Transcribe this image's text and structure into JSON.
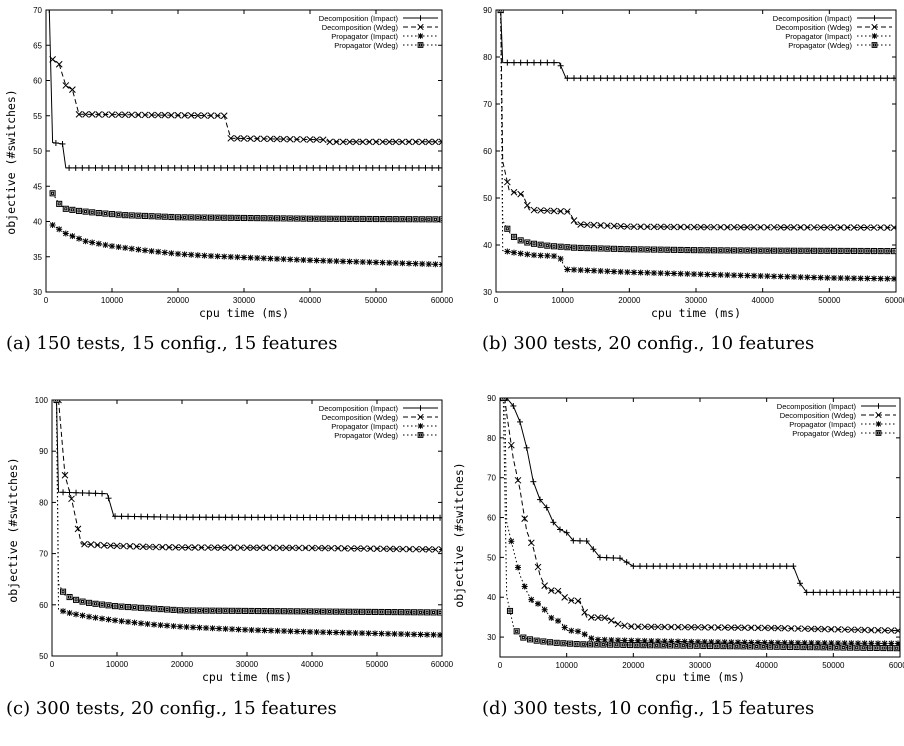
{
  "figure": {
    "title": ""
  },
  "chart_data": [
    {
      "id": "a",
      "type": "line",
      "caption": "(a) 150 tests, 15 config., 15 features",
      "xlabel": "cpu time (ms)",
      "ylabel": "objective (#switches)",
      "xlim": [
        0,
        60000
      ],
      "ylim": [
        30,
        70
      ],
      "xticks": [
        0,
        10000,
        20000,
        30000,
        40000,
        50000,
        60000
      ],
      "yticks": [
        30,
        35,
        40,
        45,
        50,
        55,
        60,
        65,
        70
      ],
      "legend_position": "top-right",
      "series": [
        {
          "name": "Decomposition (Impact)",
          "marker": "plus",
          "dash": "solid",
          "x": [
            500,
            1000,
            2500,
            3000,
            60000
          ],
          "y": [
            70,
            51.2,
            51,
            47.6,
            47.6
          ]
        },
        {
          "name": "Decomposition (Wdeg)",
          "marker": "cross",
          "dash": "dashed",
          "x": [
            1000,
            2000,
            3000,
            4000,
            5000,
            6000,
            27000,
            28000,
            42000,
            43000,
            60000
          ],
          "y": [
            63,
            62.3,
            59.3,
            58.7,
            55.2,
            55.2,
            55.0,
            51.8,
            51.6,
            51.3,
            51.3
          ]
        },
        {
          "name": "Propagator (Impact)",
          "marker": "star",
          "dash": "dotted",
          "x": [
            1000,
            3000,
            6000,
            10000,
            15000,
            20000,
            25000,
            30000,
            40000,
            50000,
            60000
          ],
          "y": [
            39.5,
            38.3,
            37.2,
            36.5,
            35.9,
            35.4,
            35.1,
            34.9,
            34.5,
            34.2,
            33.9
          ]
        },
        {
          "name": "Propagator (Wdeg)",
          "marker": "square",
          "dash": "dotted",
          "x": [
            1000,
            2000,
            3000,
            5000,
            8000,
            12000,
            20000,
            30000,
            40000,
            60000
          ],
          "y": [
            44,
            42.5,
            41.8,
            41.5,
            41.2,
            40.9,
            40.6,
            40.5,
            40.4,
            40.3
          ]
        }
      ]
    },
    {
      "id": "b",
      "type": "line",
      "caption": "(b) 300 tests, 20 config., 10 features",
      "xlabel": "cpu time (ms)",
      "ylabel": "",
      "xlim": [
        0,
        60000
      ],
      "ylim": [
        30,
        90
      ],
      "xticks": [
        0,
        10000,
        20000,
        30000,
        40000,
        50000,
        60000
      ],
      "yticks": [
        30,
        40,
        50,
        60,
        70,
        80,
        90
      ],
      "legend_position": "top-right",
      "series": [
        {
          "name": "Decomposition (Impact)",
          "marker": "plus",
          "dash": "solid",
          "x": [
            700,
            1000,
            9500,
            10500,
            60000
          ],
          "y": [
            90,
            78.8,
            78.8,
            75.5,
            75.5
          ]
        },
        {
          "name": "Decomposition (Wdeg)",
          "marker": "cross",
          "dash": "dashed",
          "x": [
            700,
            1000,
            2000,
            4000,
            5000,
            6000,
            11000,
            12000,
            20000,
            30000,
            60000
          ],
          "y": [
            90,
            57.8,
            51.5,
            50.7,
            47.5,
            47.4,
            47.1,
            44.4,
            43.9,
            43.8,
            43.7
          ]
        },
        {
          "name": "Propagator (Impact)",
          "marker": "star",
          "dash": "dotted",
          "x": [
            700,
            1000,
            3000,
            6000,
            9500,
            10500,
            20000,
            30000,
            40000,
            50000,
            60000
          ],
          "y": [
            90,
            38.8,
            38.3,
            37.8,
            37.6,
            34.8,
            34.2,
            33.8,
            33.4,
            33.0,
            32.8
          ]
        },
        {
          "name": "Propagator (Wdeg)",
          "marker": "square",
          "dash": "dotted",
          "x": [
            700,
            1000,
            2000,
            3000,
            5000,
            8000,
            12000,
            20000,
            30000,
            40000,
            60000
          ],
          "y": [
            90,
            45.2,
            42.7,
            41.3,
            40.4,
            39.8,
            39.4,
            39.1,
            38.9,
            38.8,
            38.7
          ]
        }
      ]
    },
    {
      "id": "c",
      "type": "line",
      "caption": "(c) 300 tests, 20 config., 15 features",
      "xlabel": "cpu time (ms)",
      "ylabel": "objective (#switches)",
      "xlim": [
        0,
        60000
      ],
      "ylim": [
        50,
        100
      ],
      "xticks": [
        0,
        10000,
        20000,
        30000,
        40000,
        50000,
        60000
      ],
      "yticks": [
        50,
        60,
        70,
        80,
        90,
        100
      ],
      "legend_position": "top-right",
      "series": [
        {
          "name": "Decomposition (Impact)",
          "marker": "plus",
          "dash": "solid",
          "x": [
            700,
            1000,
            8500,
            9500,
            20000,
            60000
          ],
          "y": [
            100,
            82,
            81.7,
            77.3,
            77.1,
            77.0
          ]
        },
        {
          "name": "Decomposition (Wdeg)",
          "marker": "cross",
          "dash": "dashed",
          "x": [
            1000,
            2000,
            3000,
            4500,
            8000,
            15000,
            20000,
            40000,
            60000
          ],
          "y": [
            100,
            85.3,
            80.7,
            71.9,
            71.6,
            71.3,
            71.2,
            71.1,
            70.8
          ]
        },
        {
          "name": "Propagator (Impact)",
          "marker": "star",
          "dash": "dotted",
          "x": [
            700,
            1000,
            3000,
            6000,
            10000,
            15000,
            20000,
            30000,
            40000,
            50000,
            60000
          ],
          "y": [
            100,
            59,
            58.3,
            57.6,
            56.9,
            56.2,
            55.7,
            55.1,
            54.7,
            54.4,
            54.1
          ]
        },
        {
          "name": "Propagator (Wdeg)",
          "marker": "square",
          "dash": "dotted",
          "x": [
            700,
            1000,
            2000,
            4000,
            6000,
            10000,
            15000,
            20000,
            30000,
            40000,
            60000
          ],
          "y": [
            100,
            64.1,
            61.9,
            60.8,
            60.3,
            59.7,
            59.3,
            58.9,
            58.8,
            58.7,
            58.5
          ]
        }
      ]
    },
    {
      "id": "d",
      "type": "line",
      "caption": "(d) 300 tests, 10 config., 15 features",
      "xlabel": "cpu time (ms)",
      "ylabel": "objective (#switches)",
      "xlim": [
        0,
        60000
      ],
      "ylim": [
        25,
        90
      ],
      "xticks": [
        0,
        10000,
        20000,
        30000,
        40000,
        50000,
        60000
      ],
      "yticks": [
        30,
        40,
        50,
        60,
        70,
        80,
        90
      ],
      "legend_position": "top-right",
      "series": [
        {
          "name": "Decomposition (Impact)",
          "marker": "plus",
          "dash": "solid",
          "x": [
            1000,
            2000,
            3000,
            4000,
            5000,
            6000,
            7000,
            8000,
            9000,
            10000,
            11000,
            13000,
            15000,
            18000,
            20000,
            44000,
            45000,
            46000,
            60000
          ],
          "y": [
            90,
            88,
            84,
            77.5,
            69,
            64.5,
            62.5,
            58.8,
            57,
            56.2,
            54.2,
            54.1,
            50,
            49.8,
            47.8,
            47.8,
            43.5,
            41.2,
            41.2
          ]
        },
        {
          "name": "Decomposition (Wdeg)",
          "marker": "cross",
          "dash": "dashed",
          "x": [
            700,
            1000,
            2000,
            3000,
            4000,
            5000,
            6000,
            7000,
            9000,
            10000,
            12000,
            13000,
            16000,
            18000,
            20000,
            40000,
            60000
          ],
          "y": [
            90,
            86,
            74.8,
            67,
            56.6,
            52.4,
            45.5,
            41.8,
            41.5,
            39.3,
            39.0,
            35.0,
            34.8,
            33.0,
            32.6,
            32.3,
            31.6
          ]
        },
        {
          "name": "Propagator (Impact)",
          "marker": "star",
          "dash": "dotted",
          "x": [
            700,
            1000,
            2000,
            3000,
            4000,
            5000,
            6000,
            8000,
            9000,
            10000,
            12000,
            14000,
            20000,
            30000,
            40000,
            60000
          ],
          "y": [
            90,
            58.8,
            52,
            45.5,
            41.5,
            38.5,
            38.3,
            34.2,
            34.0,
            31.7,
            31.4,
            29.4,
            29.1,
            28.8,
            28.6,
            28.4
          ]
        },
        {
          "name": "Propagator (Wdeg)",
          "marker": "square",
          "dash": "dotted",
          "x": [
            500,
            1000,
            2000,
            3000,
            5000,
            8000,
            12000,
            20000,
            30000,
            40000,
            60000
          ],
          "y": [
            90,
            40.3,
            32.8,
            30.1,
            29.2,
            28.6,
            28.2,
            28.0,
            27.8,
            27.6,
            27.2
          ]
        }
      ]
    }
  ]
}
